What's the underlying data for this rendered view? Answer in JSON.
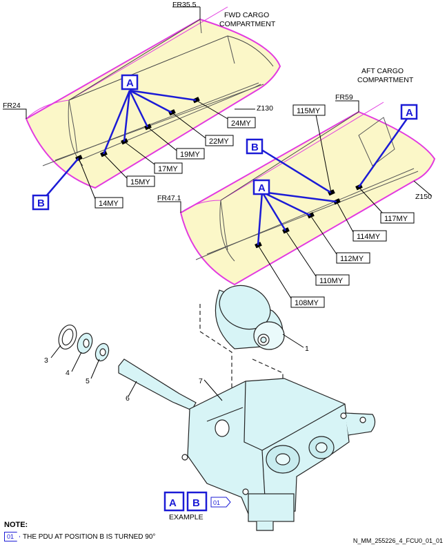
{
  "frames": {
    "fwd_fr_top": "FR35.5",
    "fwd_fr_left": "FR24",
    "fwd_zone": "Z130",
    "fwd_title": [
      "FWD CARGO",
      "COMPARTMENT"
    ],
    "aft_fr_top": "FR59",
    "aft_fr_left": "FR47.1",
    "aft_zone": "Z150",
    "aft_title": [
      "AFT CARGO",
      "COMPARTMENT"
    ]
  },
  "fwd_labels": [
    "24MY",
    "22MY",
    "19MY",
    "17MY",
    "15MY",
    "14MY"
  ],
  "aft_labels": [
    "115MY",
    "117MY",
    "114MY",
    "112MY",
    "110MY",
    "108MY"
  ],
  "callouts": {
    "a": "A",
    "b": "B"
  },
  "parts": [
    "1",
    "3",
    "4",
    "5",
    "6",
    "7"
  ],
  "legend": {
    "a": "A",
    "b": "B",
    "tag": "01",
    "caption": "EXAMPLE"
  },
  "note": {
    "title": "NOTE:",
    "tag": "01",
    "text": "THE PDU AT POSITION B IS TURNED 90°"
  },
  "reference": "N_MM_255226_4_FCU0_01_01",
  "colors": {
    "fill": "#fbf7c8",
    "edge": "#e23ae0",
    "callout": "#1b1bd6",
    "pdu": "#d7f4f6"
  }
}
